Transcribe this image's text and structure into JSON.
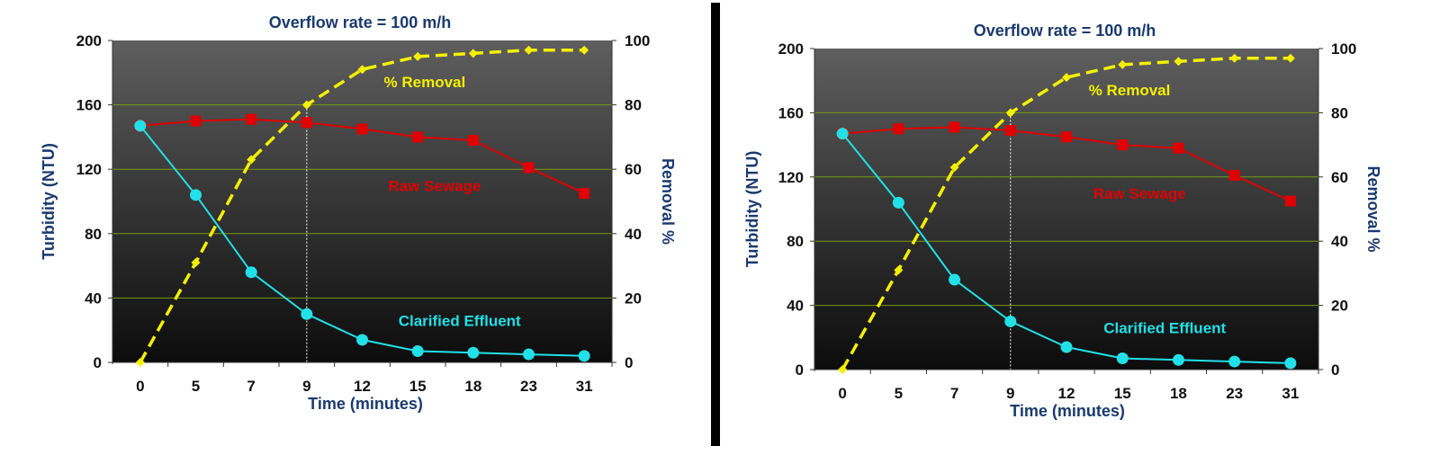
{
  "chart_data": [
    {
      "type": "line",
      "title": "Overflow rate = 100 m/h",
      "xlabel": "Time (minutes)",
      "ylabel": "Turbidity (NTU)",
      "y2label": "Removal %",
      "categories": [
        "0",
        "5",
        "7",
        "9",
        "12",
        "15",
        "18",
        "23",
        "31"
      ],
      "ylim": [
        0,
        200
      ],
      "y2lim": [
        0,
        100
      ],
      "yticks": [
        "0",
        "40",
        "80",
        "120",
        "160",
        "200"
      ],
      "y2ticks": [
        "0",
        "20",
        "40",
        "60",
        "80",
        "100"
      ],
      "grid": true,
      "marker_line_at": "9",
      "series": [
        {
          "name": "Raw Sewage",
          "axis": "left",
          "color": "#e00000",
          "marker": "square",
          "style": "solid",
          "values": [
            147,
            150,
            151,
            149,
            145,
            140,
            138,
            121,
            105
          ]
        },
        {
          "name": "Clarified Effluent",
          "axis": "left",
          "color": "#22e0e8",
          "marker": "circle",
          "style": "solid",
          "values": [
            147,
            104,
            56,
            30,
            14,
            7,
            6,
            5,
            4
          ]
        },
        {
          "name": "% Removal",
          "axis": "right",
          "color": "#f5f000",
          "marker": "diamond",
          "style": "dashed",
          "values": [
            0,
            31,
            63,
            80,
            91,
            95,
            96,
            97,
            97
          ]
        }
      ]
    },
    {
      "type": "line",
      "title": "Overflow rate = 100 m/h",
      "xlabel": "Time (minutes)",
      "ylabel": "Turbidity (NTU)",
      "y2label": "Removal %",
      "categories": [
        "0",
        "5",
        "7",
        "9",
        "12",
        "15",
        "18",
        "23",
        "31"
      ],
      "ylim": [
        0,
        200
      ],
      "y2lim": [
        0,
        100
      ],
      "yticks": [
        "0",
        "40",
        "80",
        "120",
        "160",
        "200"
      ],
      "y2ticks": [
        "0",
        "20",
        "40",
        "60",
        "80",
        "100"
      ],
      "grid": true,
      "marker_line_at": "9",
      "series": [
        {
          "name": "Raw Sewage",
          "axis": "left",
          "color": "#e00000",
          "marker": "square",
          "style": "solid",
          "values": [
            147,
            150,
            151,
            149,
            145,
            140,
            138,
            121,
            105
          ]
        },
        {
          "name": "Clarified Effluent",
          "axis": "left",
          "color": "#22e0e8",
          "marker": "circle",
          "style": "solid",
          "values": [
            147,
            104,
            56,
            30,
            14,
            7,
            6,
            5,
            4
          ]
        },
        {
          "name": "% Removal",
          "axis": "right",
          "color": "#f5f000",
          "marker": "diamond",
          "style": "dashed",
          "values": [
            0,
            31,
            63,
            80,
            91,
            95,
            96,
            97,
            97
          ]
        }
      ]
    }
  ]
}
